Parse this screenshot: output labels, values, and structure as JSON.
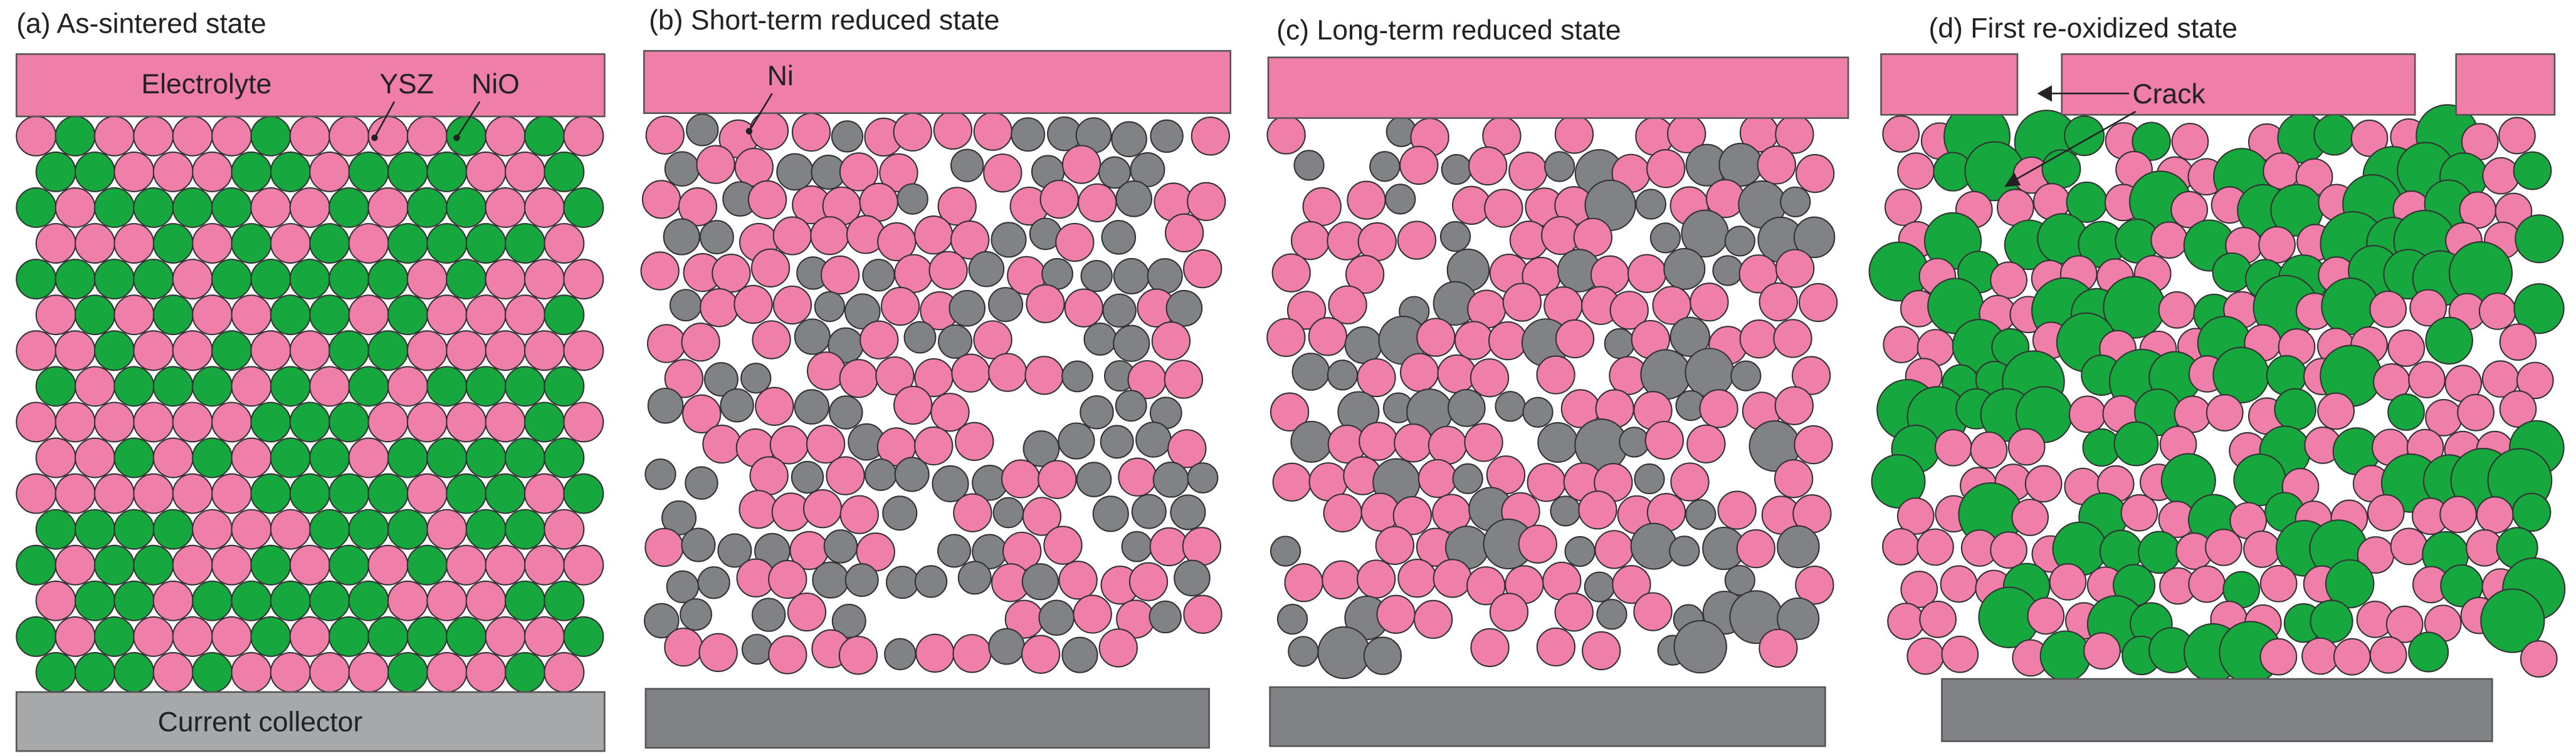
{
  "panels": [
    {
      "title": "(a) As-sintered state",
      "top_label": "Electrolyte",
      "bottom_label": "Current collector",
      "annotations": [
        "YSZ",
        "NiO"
      ]
    },
    {
      "title": "(b) Short-term reduced state",
      "annotations": [
        "Ni"
      ]
    },
    {
      "title": "(c) Long-term reduced state"
    },
    {
      "title": "(d) First re-oxidized state",
      "annotations": [
        "Crack"
      ]
    }
  ]
}
